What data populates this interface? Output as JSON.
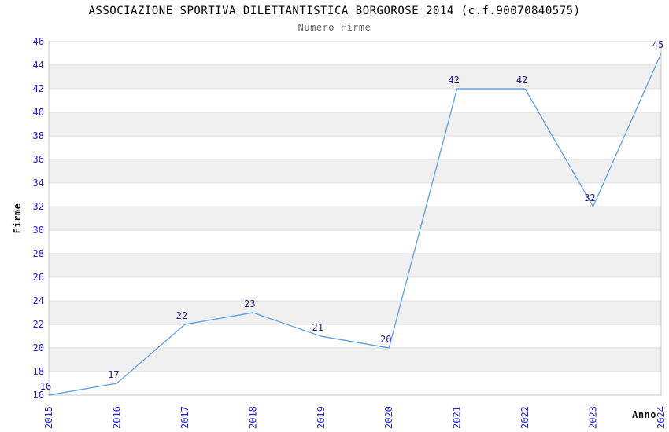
{
  "header": {
    "title": "ASSOCIAZIONE SPORTIVA DILETTANTISTICA BORGOROSE 2014 (c.f.90070840575)",
    "subtitle": "Numero Firme"
  },
  "chart_data": {
    "type": "line",
    "title": "ASSOCIAZIONE SPORTIVA DILETTANTISTICA BORGOROSE 2014 (c.f.90070840575)",
    "subtitle": "Numero Firme",
    "xlabel": "Anno",
    "ylabel": "Firme",
    "categories": [
      "2015",
      "2016",
      "2017",
      "2018",
      "2019",
      "2020",
      "2021",
      "2022",
      "2023",
      "2024"
    ],
    "series": [
      {
        "name": "Numero Firme",
        "values": [
          16,
          17,
          22,
          23,
          21,
          20,
          42,
          42,
          32,
          45
        ]
      }
    ],
    "ylim": [
      16,
      46
    ],
    "ytick_step": 2,
    "yticks": [
      16,
      18,
      20,
      22,
      24,
      26,
      28,
      30,
      32,
      34,
      36,
      38,
      40,
      42,
      44,
      46
    ],
    "grid": "horizontal",
    "legend": "none",
    "point_labels_visible": true,
    "colors": {
      "line": "#6ba3e0",
      "tick_label": "#2222cc",
      "data_label": "#1f1f8f",
      "band_fill": "#f0f0f0",
      "gridline": "#dcdcdc",
      "plot_border": "#c8c8c8",
      "title": "#000000",
      "subtitle": "#666666",
      "background": "#ffffff"
    }
  }
}
